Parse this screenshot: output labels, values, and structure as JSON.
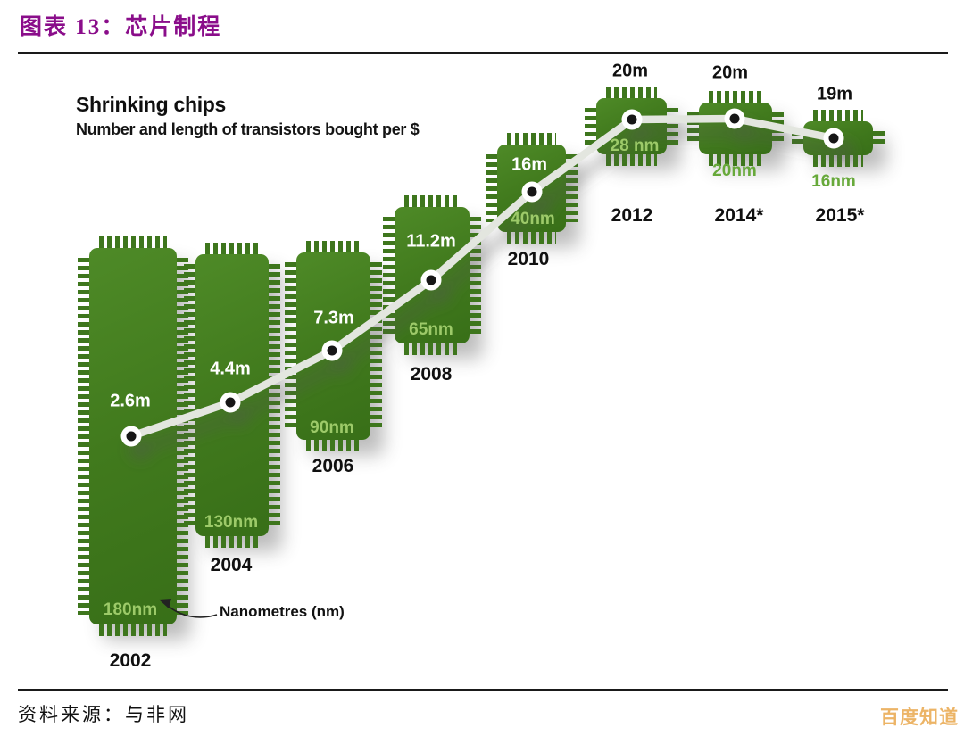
{
  "header": {
    "title": "图表 13：芯片制程"
  },
  "footer": {
    "source": "资料来源：与非网",
    "watermark": "百度知道"
  },
  "chart_data": {
    "type": "line",
    "title": "Shrinking chips",
    "subtitle": "Number and length of transistors bought per $",
    "annotation": "Nanometres (nm)",
    "grid": false,
    "legend_position": "none",
    "x_categories": [
      "2002",
      "2004",
      "2006",
      "2008",
      "2010",
      "2012",
      "2014*",
      "2015*"
    ],
    "series": [
      {
        "name": "Transistors bought per $ (millions)",
        "values": [
          2.6,
          4.4,
          7.3,
          11.2,
          16,
          20,
          20,
          19
        ]
      },
      {
        "name": "Process node length (nm)",
        "values": [
          180,
          130,
          90,
          65,
          40,
          28,
          20,
          16
        ]
      }
    ],
    "points": [
      {
        "year": "2002",
        "value_label": "2.6m",
        "nm_label": "180nm",
        "transistors_millions": 2.6,
        "node_nm": 180
      },
      {
        "year": "2004",
        "value_label": "4.4m",
        "nm_label": "130nm",
        "transistors_millions": 4.4,
        "node_nm": 130
      },
      {
        "year": "2006",
        "value_label": "7.3m",
        "nm_label": "90nm",
        "transistors_millions": 7.3,
        "node_nm": 90
      },
      {
        "year": "2008",
        "value_label": "11.2m",
        "nm_label": "65nm",
        "transistors_millions": 11.2,
        "node_nm": 65
      },
      {
        "year": "2010",
        "value_label": "16m",
        "nm_label": "40nm",
        "transistors_millions": 16,
        "node_nm": 40
      },
      {
        "year": "2012",
        "value_label": "20m",
        "nm_label": "28 nm",
        "transistors_millions": 20,
        "node_nm": 28
      },
      {
        "year": "2014*",
        "value_label": "20m",
        "nm_label": "20nm",
        "transistors_millions": 20,
        "node_nm": 20
      },
      {
        "year": "2015*",
        "value_label": "19m",
        "nm_label": "16nm",
        "transistors_millions": 19,
        "node_nm": 16
      }
    ],
    "colors": {
      "chip_green": "#41791e",
      "nm_text_inside": "#9dca69",
      "nm_text_outside": "#67a93a",
      "line": "#e3e6df",
      "marker_core": "#141414",
      "title_purple": "#8a0d8a",
      "watermark_orange": "#eaaa52"
    }
  }
}
